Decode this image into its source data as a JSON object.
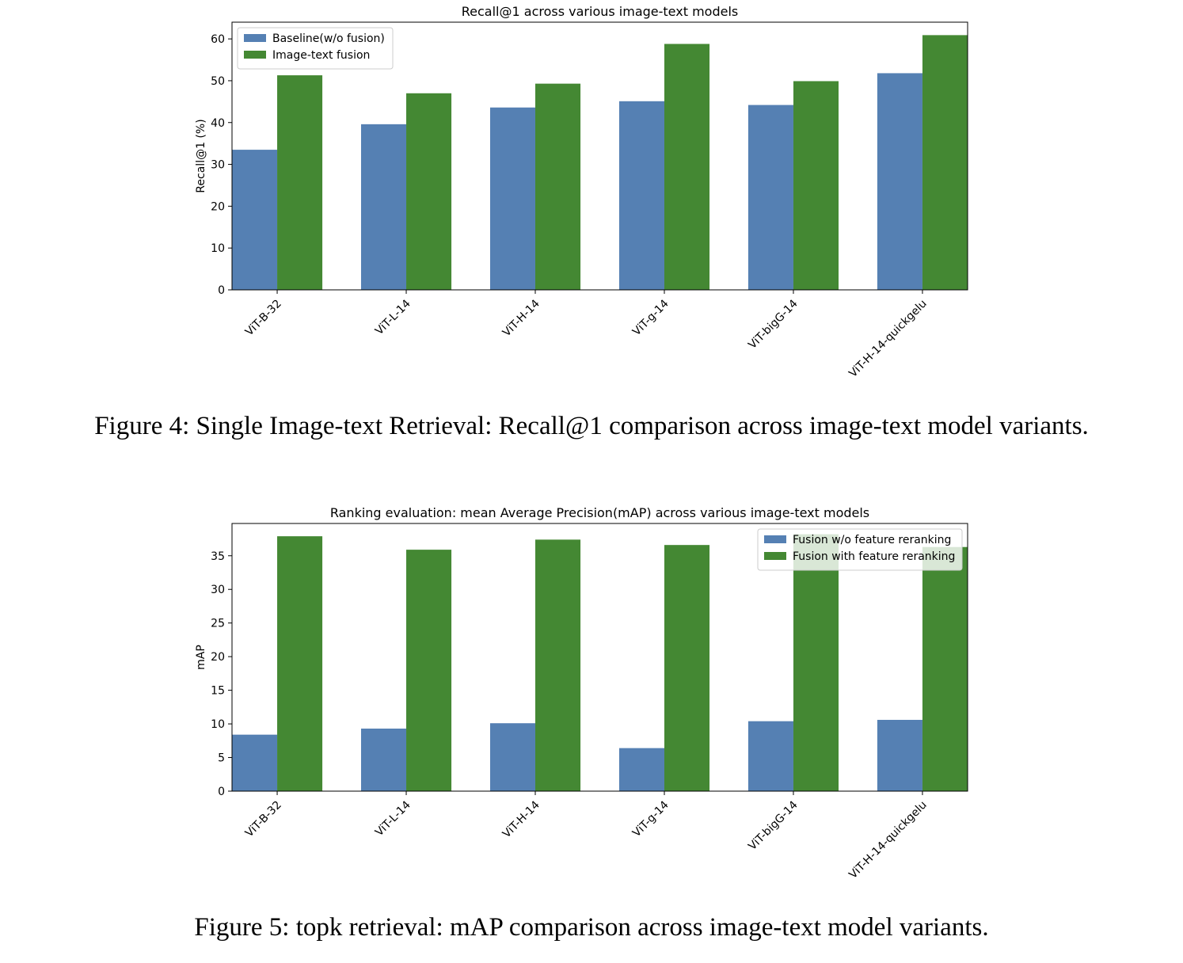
{
  "colors": {
    "series_a": "#5580b3",
    "series_b": "#448833"
  },
  "figures": [
    {
      "caption": "Figure 4: Single Image-text Retrieval: Recall@1 comparison across image-text model variants."
    },
    {
      "caption": "Figure 5: topk retrieval: mAP comparison across image-text model variants."
    }
  ],
  "chart_data": [
    {
      "type": "bar",
      "title": "Recall@1 across various image-text models",
      "xlabel": "",
      "ylabel": "Recall@1 (%)",
      "categories": [
        "ViT-B-32",
        "ViT-L-14",
        "ViT-H-14",
        "ViT-g-14",
        "ViT-bigG-14",
        "ViT-H-14-quickgelu"
      ],
      "series": [
        {
          "name": "Baseline(w/o fusion)",
          "values": [
            33.5,
            39.6,
            43.6,
            45.1,
            44.2,
            51.8
          ]
        },
        {
          "name": "Image-text fusion",
          "values": [
            51.3,
            47.0,
            49.3,
            58.8,
            49.9,
            60.9
          ]
        }
      ],
      "ylim": [
        0,
        64
      ],
      "yticks": [
        0,
        10,
        20,
        30,
        40,
        50,
        60
      ],
      "legend": "top-left",
      "grid": false
    },
    {
      "type": "bar",
      "title": "Ranking evaluation: mean Average Precision(mAP) across various image-text models",
      "xlabel": "",
      "ylabel": "mAP",
      "categories": [
        "ViT-B-32",
        "ViT-L-14",
        "ViT-H-14",
        "ViT-g-14",
        "ViT-bigG-14",
        "ViT-H-14-quickgelu"
      ],
      "series": [
        {
          "name": "Fusion w/o feature reranking",
          "values": [
            8.4,
            9.3,
            10.1,
            6.4,
            10.4,
            10.6
          ]
        },
        {
          "name": "Fusion with feature reranking",
          "values": [
            37.9,
            35.9,
            37.4,
            36.6,
            38.2,
            36.3
          ]
        }
      ],
      "ylim": [
        0,
        39.8
      ],
      "yticks": [
        0,
        5,
        10,
        15,
        20,
        25,
        30,
        35
      ],
      "legend": "top-right",
      "grid": false
    }
  ]
}
